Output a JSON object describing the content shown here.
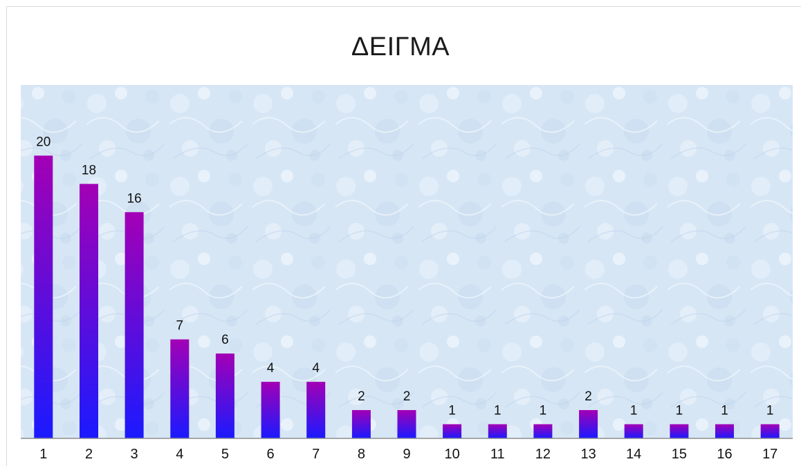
{
  "chart_data": {
    "type": "bar",
    "title": "ΔΕΙΓΜΑ",
    "xlabel": "",
    "ylabel": "",
    "categories": [
      "1",
      "2",
      "3",
      "4",
      "5",
      "6",
      "7",
      "8",
      "9",
      "10",
      "11",
      "12",
      "13",
      "14",
      "15",
      "16",
      "17"
    ],
    "values": [
      20,
      18,
      16,
      7,
      6,
      4,
      4,
      2,
      2,
      1,
      1,
      1,
      2,
      1,
      1,
      1,
      1
    ],
    "ylim": [
      0,
      25
    ],
    "grid": false,
    "legend": "none",
    "data_labels": true,
    "colors": {
      "bar_top": "#a300b5",
      "bar_bottom": "#1a1aff",
      "plot_bg": "#d6e6f5",
      "axis_line": "#8c8c8c"
    }
  }
}
